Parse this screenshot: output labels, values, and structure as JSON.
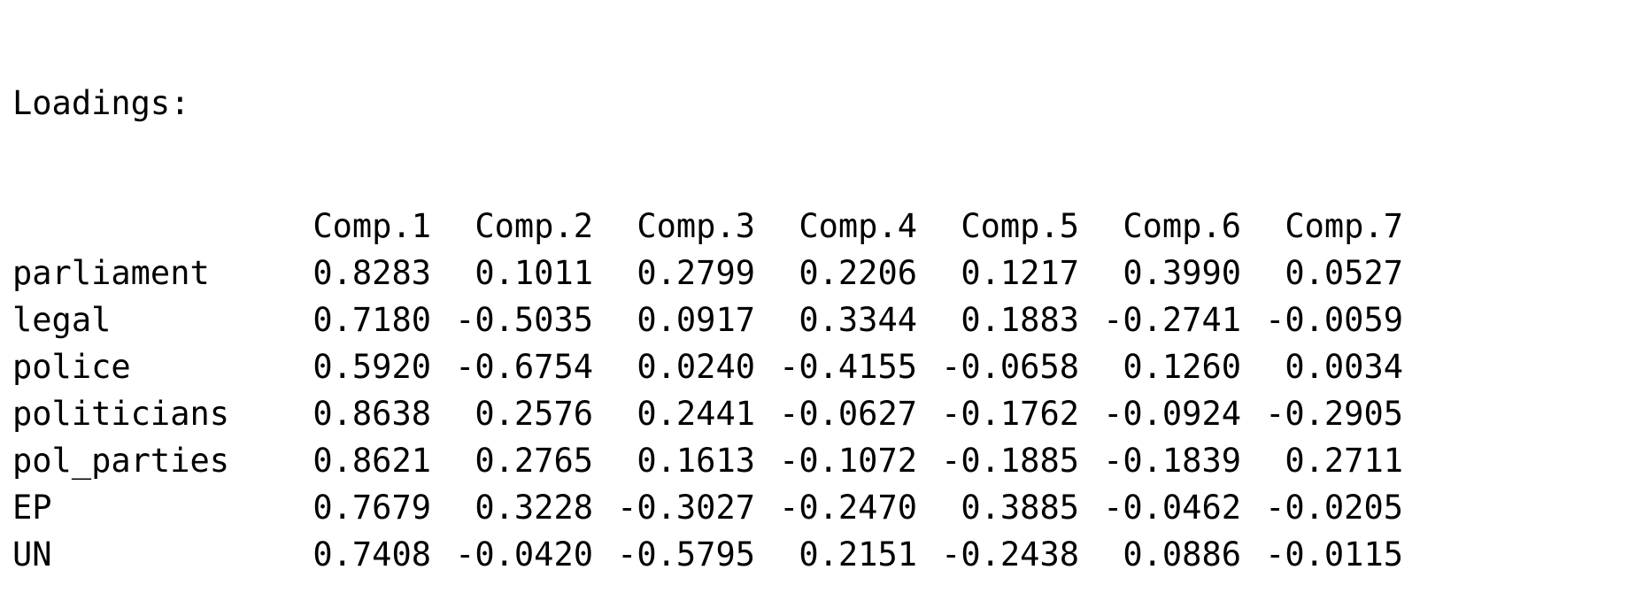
{
  "title": "Loadings:",
  "columns": [
    "Comp.1",
    "Comp.2",
    "Comp.3",
    "Comp.4",
    "Comp.5",
    "Comp.6",
    "Comp.7"
  ],
  "rows": [
    {
      "label": "parliament",
      "values": [
        "0.8283",
        "0.1011",
        "0.2799",
        "0.2206",
        "0.1217",
        "0.3990",
        "0.0527"
      ]
    },
    {
      "label": "legal",
      "values": [
        "0.7180",
        "-0.5035",
        "0.0917",
        "0.3344",
        "0.1883",
        "-0.2741",
        "-0.0059"
      ]
    },
    {
      "label": "police",
      "values": [
        "0.5920",
        "-0.6754",
        "0.0240",
        "-0.4155",
        "-0.0658",
        "0.1260",
        "0.0034"
      ]
    },
    {
      "label": "politicians",
      "values": [
        "0.8638",
        "0.2576",
        "0.2441",
        "-0.0627",
        "-0.1762",
        "-0.0924",
        "-0.2905"
      ]
    },
    {
      "label": "pol_parties",
      "values": [
        "0.8621",
        "0.2765",
        "0.1613",
        "-0.1072",
        "-0.1885",
        "-0.1839",
        "0.2711"
      ]
    },
    {
      "label": "EP",
      "values": [
        "0.7679",
        "0.3228",
        "-0.3027",
        "-0.2470",
        "0.3885",
        "-0.0462",
        "-0.0205"
      ]
    },
    {
      "label": "UN",
      "values": [
        "0.7408",
        "-0.0420",
        "-0.5795",
        "0.2151",
        "-0.2438",
        "0.0886",
        "-0.0115"
      ]
    }
  ]
}
